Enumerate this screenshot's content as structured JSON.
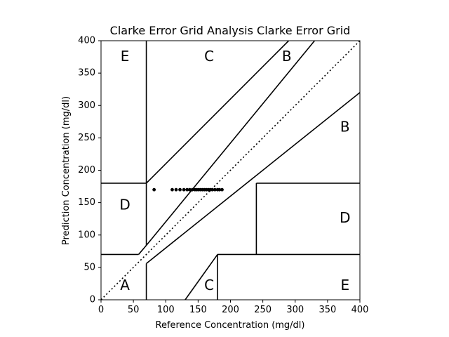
{
  "chart_data": {
    "type": "scatter",
    "title": "Clarke Error Grid Analysis Clarke Error Grid",
    "xlabel": "Reference Concentration (mg/dl)",
    "ylabel": "Prediction Concentration (mg/dl)",
    "xlim": [
      0,
      400
    ],
    "ylim": [
      0,
      400
    ],
    "x_ticks": [
      0,
      50,
      100,
      150,
      200,
      250,
      300,
      350,
      400
    ],
    "y_ticks": [
      0,
      50,
      100,
      150,
      200,
      250,
      300,
      350,
      400
    ],
    "grid": false,
    "points": [
      {
        "x": 82,
        "y": 170
      },
      {
        "x": 110,
        "y": 170
      },
      {
        "x": 116,
        "y": 170
      },
      {
        "x": 122,
        "y": 170
      },
      {
        "x": 128,
        "y": 170
      },
      {
        "x": 133,
        "y": 170
      },
      {
        "x": 137,
        "y": 170
      },
      {
        "x": 141,
        "y": 170
      },
      {
        "x": 145,
        "y": 170
      },
      {
        "x": 148,
        "y": 170
      },
      {
        "x": 151,
        "y": 170
      },
      {
        "x": 154,
        "y": 170
      },
      {
        "x": 157,
        "y": 170
      },
      {
        "x": 160,
        "y": 170
      },
      {
        "x": 163,
        "y": 170
      },
      {
        "x": 166,
        "y": 170
      },
      {
        "x": 169,
        "y": 170
      },
      {
        "x": 172,
        "y": 170
      },
      {
        "x": 176,
        "y": 170
      },
      {
        "x": 180,
        "y": 170
      },
      {
        "x": 183,
        "y": 170
      },
      {
        "x": 187,
        "y": 170
      }
    ],
    "boundary_lines": [
      {
        "from": [
          0,
          0
        ],
        "to": [
          400,
          400
        ],
        "style": "dotted"
      },
      {
        "from": [
          70,
          84
        ],
        "to": [
          330,
          400
        ],
        "style": "solid"
      },
      {
        "from": [
          70,
          180
        ],
        "to": [
          290,
          400
        ],
        "style": "solid"
      },
      {
        "from": [
          70,
          56
        ],
        "to": [
          400,
          320
        ],
        "style": "solid"
      },
      {
        "from": [
          130,
          0
        ],
        "to": [
          180,
          70
        ],
        "style": "solid"
      },
      {
        "from": [
          180,
          0
        ],
        "to": [
          180,
          70
        ],
        "style": "solid"
      },
      {
        "from": [
          180,
          70
        ],
        "to": [
          400,
          70
        ],
        "style": "solid"
      },
      {
        "from": [
          240,
          70
        ],
        "to": [
          240,
          180
        ],
        "style": "solid"
      },
      {
        "from": [
          240,
          180
        ],
        "to": [
          400,
          180
        ],
        "style": "solid"
      },
      {
        "from": [
          0,
          180
        ],
        "to": [
          70,
          180
        ],
        "style": "solid"
      },
      {
        "from": [
          70,
          0
        ],
        "to": [
          70,
          56
        ],
        "style": "solid"
      },
      {
        "from": [
          70,
          84
        ],
        "to": [
          70,
          400
        ],
        "style": "solid"
      },
      {
        "from": [
          0,
          70
        ],
        "to": [
          58,
          70
        ],
        "style": "solid"
      },
      {
        "from": [
          58,
          70
        ],
        "to": [
          70,
          84
        ],
        "style": "solid"
      }
    ],
    "region_labels": [
      {
        "text": "A",
        "x": 37,
        "y": 23
      },
      {
        "text": "B",
        "x": 287,
        "y": 376
      },
      {
        "text": "B",
        "x": 377,
        "y": 267
      },
      {
        "text": "C",
        "x": 167,
        "y": 376
      },
      {
        "text": "C",
        "x": 167,
        "y": 23
      },
      {
        "text": "D",
        "x": 37,
        "y": 147
      },
      {
        "text": "D",
        "x": 377,
        "y": 127
      },
      {
        "text": "E",
        "x": 37,
        "y": 376
      },
      {
        "text": "E",
        "x": 377,
        "y": 23
      }
    ]
  }
}
